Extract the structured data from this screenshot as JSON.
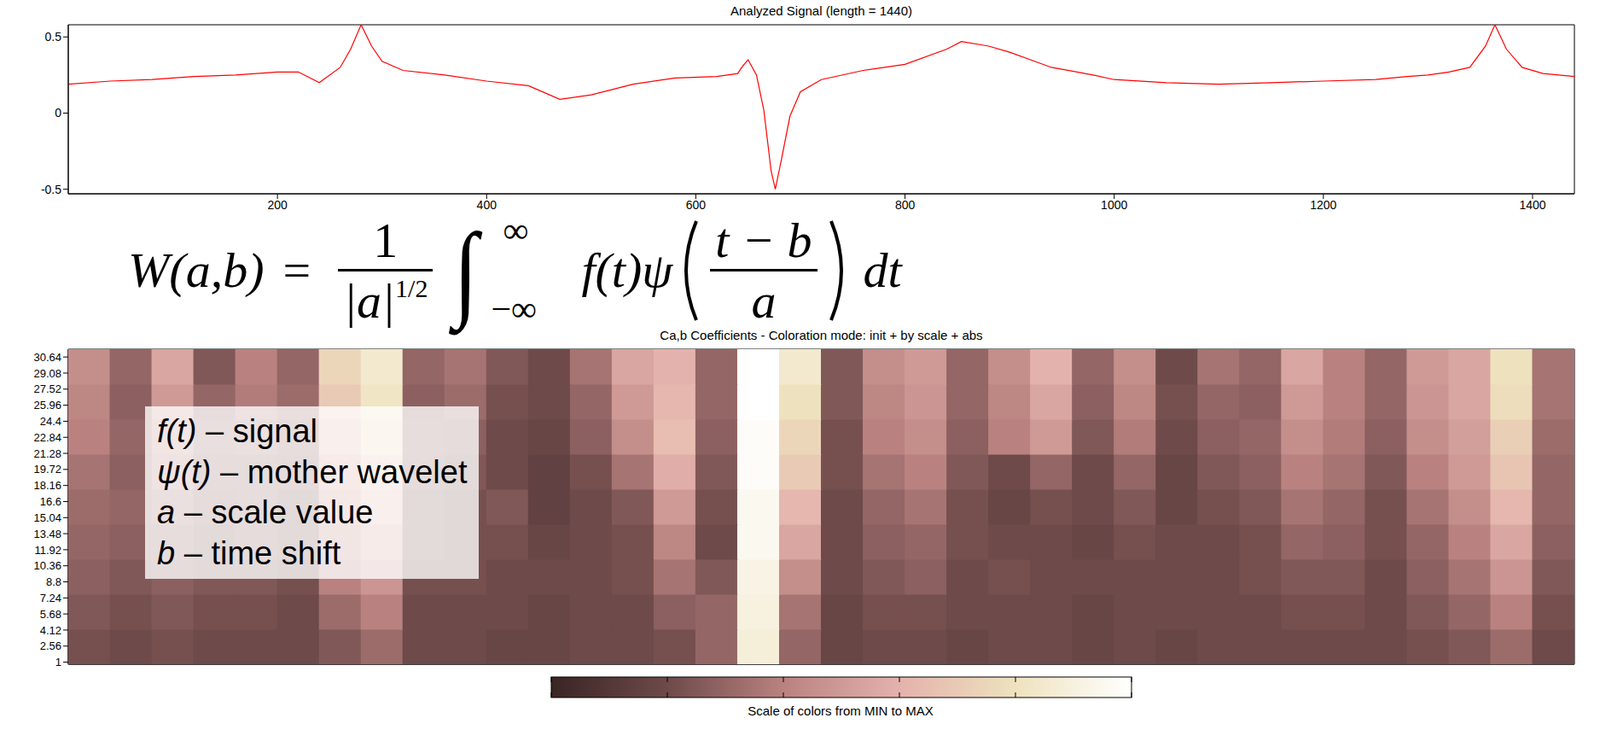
{
  "chart_data": [
    {
      "type": "line",
      "title": "Analyzed Signal (length = 1440)",
      "x": [
        0,
        40,
        80,
        120,
        160,
        200,
        220,
        240,
        260,
        270,
        280,
        290,
        300,
        320,
        360,
        400,
        440,
        470,
        500,
        540,
        580,
        620,
        640,
        645,
        650,
        658,
        665,
        672,
        676,
        682,
        690,
        700,
        720,
        760,
        800,
        840,
        854,
        880,
        900,
        920,
        940,
        980,
        1000,
        1050,
        1100,
        1150,
        1200,
        1250,
        1280,
        1300,
        1320,
        1340,
        1355,
        1364,
        1375,
        1390,
        1410,
        1440
      ],
      "values": [
        0.19,
        0.21,
        0.22,
        0.24,
        0.25,
        0.27,
        0.27,
        0.2,
        0.3,
        0.42,
        0.58,
        0.44,
        0.34,
        0.28,
        0.25,
        0.21,
        0.18,
        0.09,
        0.12,
        0.19,
        0.23,
        0.24,
        0.26,
        0.31,
        0.35,
        0.25,
        0.02,
        -0.38,
        -0.5,
        -0.3,
        -0.02,
        0.14,
        0.22,
        0.28,
        0.32,
        0.42,
        0.47,
        0.44,
        0.4,
        0.35,
        0.3,
        0.25,
        0.22,
        0.2,
        0.19,
        0.2,
        0.21,
        0.22,
        0.24,
        0.25,
        0.27,
        0.3,
        0.44,
        0.58,
        0.42,
        0.3,
        0.26,
        0.24
      ],
      "color": "#ff0000",
      "xlim": [
        0,
        1440
      ],
      "xticks": [
        200,
        400,
        600,
        800,
        1000,
        1200,
        1400
      ],
      "ylim": [
        -0.53,
        0.58
      ],
      "yticks": [
        -0.5,
        0,
        0.5
      ]
    },
    {
      "type": "heatmap",
      "title": "Ca,b Coefficients - Coloration mode: init + by scale + abs",
      "tick_labels": "y",
      "x": [
        20,
        60,
        100,
        140,
        180,
        220,
        260,
        300,
        340,
        380,
        420,
        460,
        500,
        540,
        580,
        620,
        660,
        700,
        740,
        780,
        820,
        860,
        900,
        940,
        980,
        1020,
        1060,
        1100,
        1140,
        1180,
        1220,
        1260,
        1300,
        1340,
        1380,
        1420
      ],
      "y": [
        2.5,
        5.9,
        9.3,
        12.7,
        16.1,
        19.5,
        22.9,
        26.3,
        29.7
      ],
      "xlim": [
        0,
        1440
      ],
      "ylim": [
        0.8,
        31.4
      ],
      "yticks": [
        1,
        2.56,
        4.12,
        5.68,
        7.24,
        8.8,
        10.36,
        11.92,
        13.48,
        15.04,
        16.6,
        18.16,
        19.72,
        21.28,
        22.84,
        24.4,
        25.96,
        27.52,
        29.08,
        30.64
      ],
      "cells": [
        [
          0.22,
          0.2,
          0.22,
          0.2,
          0.2,
          0.2,
          0.25,
          0.32,
          0.2,
          0.2,
          0.18,
          0.18,
          0.2,
          0.2,
          0.22,
          0.3,
          0.88,
          0.3,
          0.18,
          0.2,
          0.2,
          0.18,
          0.2,
          0.2,
          0.18,
          0.2,
          0.18,
          0.2,
          0.2,
          0.2,
          0.2,
          0.2,
          0.22,
          0.25,
          0.32,
          0.2
        ],
        [
          0.25,
          0.22,
          0.25,
          0.22,
          0.22,
          0.2,
          0.32,
          0.4,
          0.2,
          0.2,
          0.2,
          0.18,
          0.2,
          0.2,
          0.28,
          0.3,
          0.9,
          0.35,
          0.18,
          0.22,
          0.22,
          0.2,
          0.2,
          0.2,
          0.18,
          0.2,
          0.2,
          0.2,
          0.2,
          0.22,
          0.22,
          0.2,
          0.25,
          0.3,
          0.4,
          0.22
        ],
        [
          0.28,
          0.25,
          0.28,
          0.25,
          0.25,
          0.22,
          0.4,
          0.48,
          0.22,
          0.22,
          0.2,
          0.2,
          0.2,
          0.22,
          0.35,
          0.25,
          0.92,
          0.45,
          0.2,
          0.25,
          0.28,
          0.2,
          0.22,
          0.2,
          0.2,
          0.2,
          0.2,
          0.2,
          0.22,
          0.25,
          0.25,
          0.2,
          0.28,
          0.35,
          0.48,
          0.25
        ],
        [
          0.3,
          0.28,
          0.3,
          0.25,
          0.28,
          0.25,
          0.45,
          0.55,
          0.25,
          0.22,
          0.22,
          0.18,
          0.2,
          0.22,
          0.42,
          0.2,
          0.95,
          0.55,
          0.2,
          0.28,
          0.3,
          0.22,
          0.2,
          0.2,
          0.18,
          0.22,
          0.2,
          0.2,
          0.22,
          0.3,
          0.28,
          0.22,
          0.3,
          0.4,
          0.55,
          0.28
        ],
        [
          0.32,
          0.3,
          0.35,
          0.28,
          0.3,
          0.25,
          0.5,
          0.62,
          0.25,
          0.22,
          0.25,
          0.15,
          0.2,
          0.25,
          0.5,
          0.22,
          0.95,
          0.62,
          0.2,
          0.3,
          0.35,
          0.22,
          0.18,
          0.22,
          0.2,
          0.25,
          0.18,
          0.22,
          0.25,
          0.35,
          0.3,
          0.22,
          0.35,
          0.45,
          0.62,
          0.3
        ],
        [
          0.35,
          0.28,
          0.4,
          0.3,
          0.3,
          0.28,
          0.55,
          0.68,
          0.28,
          0.25,
          0.2,
          0.15,
          0.22,
          0.35,
          0.58,
          0.25,
          0.98,
          0.7,
          0.22,
          0.35,
          0.4,
          0.25,
          0.2,
          0.3,
          0.2,
          0.3,
          0.18,
          0.25,
          0.28,
          0.4,
          0.35,
          0.25,
          0.4,
          0.5,
          0.68,
          0.3
        ],
        [
          0.4,
          0.3,
          0.45,
          0.32,
          0.35,
          0.3,
          0.62,
          0.75,
          0.3,
          0.28,
          0.2,
          0.18,
          0.28,
          0.45,
          0.65,
          0.28,
          0.98,
          0.75,
          0.22,
          0.4,
          0.45,
          0.28,
          0.4,
          0.5,
          0.25,
          0.38,
          0.2,
          0.28,
          0.3,
          0.45,
          0.38,
          0.28,
          0.45,
          0.52,
          0.72,
          0.32
        ],
        [
          0.42,
          0.28,
          0.5,
          0.3,
          0.38,
          0.32,
          0.7,
          0.82,
          0.28,
          0.32,
          0.22,
          0.2,
          0.3,
          0.5,
          0.62,
          0.3,
          1.0,
          0.8,
          0.25,
          0.42,
          0.48,
          0.3,
          0.42,
          0.55,
          0.28,
          0.42,
          0.22,
          0.3,
          0.28,
          0.5,
          0.4,
          0.3,
          0.48,
          0.55,
          0.78,
          0.35
        ],
        [
          0.45,
          0.3,
          0.55,
          0.25,
          0.4,
          0.3,
          0.75,
          0.85,
          0.3,
          0.35,
          0.25,
          0.2,
          0.35,
          0.55,
          0.6,
          0.3,
          1.0,
          0.85,
          0.25,
          0.45,
          0.5,
          0.3,
          0.45,
          0.6,
          0.3,
          0.45,
          0.2,
          0.35,
          0.3,
          0.55,
          0.4,
          0.3,
          0.5,
          0.55,
          0.8,
          0.35
        ]
      ],
      "colorbar": {
        "range": [
          0,
          1
        ],
        "ticks": [
          0,
          0.2,
          0.4,
          0.6,
          0.8,
          1
        ],
        "tick_labels": false,
        "label": "Scale of colors from MIN to MAX"
      }
    }
  ],
  "annotations": {
    "formula": {
      "lhs": "W(a,b)",
      "relation": "=",
      "fraction": {
        "numerator": "1",
        "denominator": "|a|",
        "exponent": "1/2"
      },
      "integral": {
        "sign": "∫",
        "upper": "∞",
        "lower": "−∞"
      },
      "integrand": "f(t)ψ",
      "argument": {
        "numerator": "t − b",
        "denominator": "a"
      },
      "tail": "dt"
    },
    "definitions": [
      {
        "symbol": "f(t)",
        "text": "– signal"
      },
      {
        "symbol": "ψ(t)",
        "text": "– mother wavelet"
      },
      {
        "symbol": "a",
        "text": "– scale value"
      },
      {
        "symbol": "b",
        "text": "– time shift"
      }
    ]
  }
}
